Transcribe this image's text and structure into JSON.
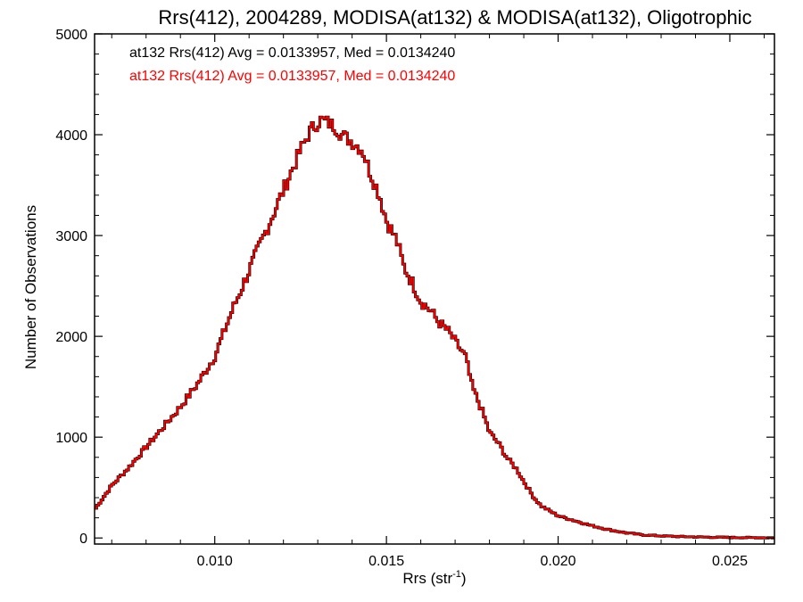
{
  "chart_data": {
    "type": "line",
    "step": true,
    "title": "Rrs(412), 2004289, MODISA(at132) & MODISA(at132), Oligotrophic",
    "xlabel_base": "Rrs (str",
    "xlabel_sup": "-1",
    "xlabel_end": ")",
    "ylabel": "Number of Observations",
    "xlim": [
      0.0065,
      0.0263
    ],
    "ylim": [
      -60,
      5000
    ],
    "xticks": [
      0.01,
      0.015,
      0.02,
      0.025
    ],
    "xtick_labels": [
      "0.010",
      "0.015",
      "0.020",
      "0.025"
    ],
    "yticks": [
      0,
      1000,
      2000,
      3000,
      4000,
      5000
    ],
    "ytick_labels": [
      "0",
      "1000",
      "2000",
      "3000",
      "4000",
      "5000"
    ],
    "grid": false,
    "annotations": [
      {
        "text": "at132 Rrs(412) Avg = 0.0133957, Med = 0.0134240",
        "color": "#000000"
      },
      {
        "text": "at132 Rrs(412) Avg = 0.0133957, Med = 0.0134240",
        "color": "#ff0000"
      }
    ],
    "series": [
      {
        "color": "#ff0000",
        "x": [
          0.0065,
          0.007,
          0.0075,
          0.008,
          0.0085,
          0.009,
          0.0095,
          0.01,
          0.0105,
          0.011,
          0.0115,
          0.012,
          0.0125,
          0.0128,
          0.0131,
          0.0133,
          0.0135,
          0.0137,
          0.014,
          0.0143,
          0.0145,
          0.0148,
          0.015,
          0.0153,
          0.0155,
          0.0158,
          0.016,
          0.0163,
          0.0165,
          0.0168,
          0.017,
          0.0173,
          0.0175,
          0.0178,
          0.018,
          0.0183,
          0.0185,
          0.0188,
          0.019,
          0.0193,
          0.0195,
          0.0198,
          0.02,
          0.0205,
          0.021,
          0.0215,
          0.022,
          0.0225,
          0.023,
          0.024,
          0.025,
          0.0263
        ],
        "y": [
          280,
          520,
          700,
          900,
          1100,
          1300,
          1530,
          1800,
          2250,
          2650,
          3050,
          3450,
          3850,
          4050,
          4150,
          4120,
          4080,
          4000,
          3930,
          3850,
          3650,
          3400,
          3150,
          2950,
          2700,
          2500,
          2350,
          2250,
          2150,
          2050,
          1950,
          1800,
          1500,
          1250,
          1050,
          920,
          800,
          680,
          560,
          400,
          320,
          260,
          220,
          170,
          120,
          80,
          50,
          30,
          20,
          10,
          5,
          2
        ]
      }
    ]
  }
}
